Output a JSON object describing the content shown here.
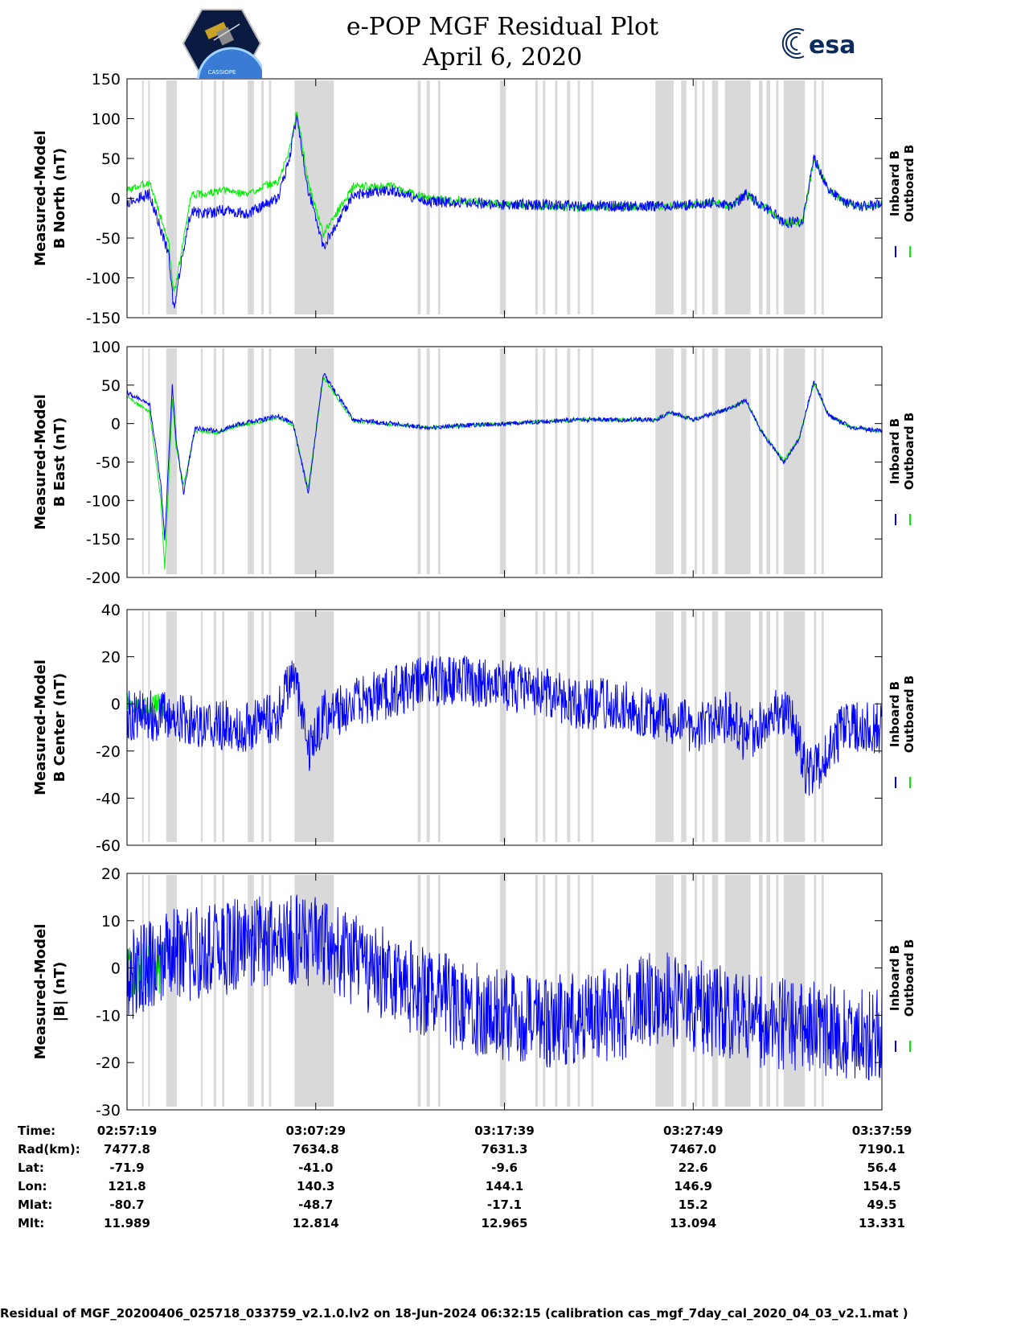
{
  "header": {
    "title_line1": "e-POP MGF Residual Plot",
    "title_line2": "April 6, 2020",
    "left_logo_text": "CASSIOPE",
    "right_logo_text": "esa"
  },
  "colors": {
    "inboard": "#0000ff",
    "outboard": "#00ee00",
    "shading": "#d9d9d9"
  },
  "chart_data": [
    {
      "type": "line",
      "ylabel": [
        "Measured-Model",
        "B North (nT)"
      ],
      "ylim": [
        -150,
        150
      ],
      "yticks": [
        -150,
        -100,
        -50,
        0,
        50,
        100,
        150
      ],
      "legend": [
        "Inboard B",
        "Outboard B"
      ],
      "legend_placement": "right",
      "series": [
        {
          "name": "Inboard B",
          "color": "#0000ff",
          "x": [
            0,
            0.03,
            0.055,
            0.062,
            0.07,
            0.085,
            0.1,
            0.13,
            0.16,
            0.18,
            0.2,
            0.215,
            0.225,
            0.24,
            0.26,
            0.3,
            0.35,
            0.4,
            0.45,
            0.5,
            0.55,
            0.6,
            0.65,
            0.7,
            0.75,
            0.78,
            0.8,
            0.82,
            0.85,
            0.87,
            0.895,
            0.91,
            0.93,
            0.95,
            0.97,
            1.0
          ],
          "y": [
            -5,
            5,
            -70,
            -140,
            -90,
            -15,
            -20,
            -15,
            -20,
            -10,
            0,
            50,
            105,
            10,
            -60,
            5,
            10,
            -5,
            -5,
            -8,
            -8,
            -10,
            -10,
            -10,
            -8,
            -5,
            -10,
            5,
            -15,
            -30,
            -30,
            50,
            10,
            -5,
            -10,
            -8
          ],
          "noise": 14
        },
        {
          "name": "Outboard B",
          "color": "#00ee00",
          "x": [
            0,
            0.03,
            0.055,
            0.062,
            0.07,
            0.085,
            0.1,
            0.13,
            0.16,
            0.18,
            0.2,
            0.215,
            0.225,
            0.24,
            0.26,
            0.3,
            0.35,
            0.4,
            0.45,
            0.5,
            0.55,
            0.6,
            0.65,
            0.7,
            0.75,
            0.78,
            0.8,
            0.82,
            0.85,
            0.87,
            0.895,
            0.91,
            0.93,
            0.95,
            0.97,
            1.0
          ],
          "y": [
            10,
            20,
            -55,
            -120,
            -80,
            5,
            5,
            10,
            5,
            15,
            20,
            60,
            110,
            20,
            -45,
            15,
            15,
            0,
            -3,
            -8,
            -10,
            -12,
            -10,
            -10,
            -8,
            -5,
            -10,
            5,
            -15,
            -30,
            -30,
            50,
            10,
            -5,
            -10,
            -8
          ],
          "noise": 10
        }
      ]
    },
    {
      "type": "line",
      "ylabel": [
        "Measured-Model",
        "B East (nT)"
      ],
      "ylim": [
        -200,
        100
      ],
      "yticks": [
        -200,
        -150,
        -100,
        -50,
        0,
        50,
        100
      ],
      "legend": [
        "Inboard B",
        "Outboard B"
      ],
      "legend_placement": "right",
      "series": [
        {
          "name": "Inboard B",
          "color": "#0000ff",
          "x": [
            0,
            0.03,
            0.045,
            0.05,
            0.06,
            0.065,
            0.075,
            0.09,
            0.12,
            0.15,
            0.18,
            0.2,
            0.22,
            0.24,
            0.26,
            0.3,
            0.4,
            0.5,
            0.6,
            0.7,
            0.72,
            0.75,
            0.8,
            0.82,
            0.84,
            0.87,
            0.89,
            0.91,
            0.93,
            0.96,
            1.0
          ],
          "y": [
            40,
            25,
            -80,
            -150,
            50,
            -20,
            -90,
            -5,
            -10,
            0,
            5,
            10,
            0,
            -90,
            65,
            5,
            -5,
            0,
            5,
            5,
            15,
            5,
            20,
            30,
            -10,
            -50,
            -20,
            55,
            10,
            -5,
            -10
          ],
          "noise": 6
        },
        {
          "name": "Outboard B",
          "color": "#00ee00",
          "x": [
            0,
            0.03,
            0.045,
            0.05,
            0.06,
            0.065,
            0.075,
            0.09,
            0.12,
            0.15,
            0.18,
            0.2,
            0.22,
            0.24,
            0.26,
            0.3,
            0.4,
            0.5,
            0.6,
            0.7,
            0.72,
            0.75,
            0.8,
            0.82,
            0.84,
            0.87,
            0.89,
            0.91,
            0.93,
            0.96,
            1.0
          ],
          "y": [
            35,
            15,
            -100,
            -190,
            30,
            -30,
            -80,
            -10,
            -12,
            -2,
            3,
            8,
            -2,
            -85,
            60,
            3,
            -5,
            0,
            5,
            5,
            15,
            5,
            20,
            30,
            -10,
            -48,
            -20,
            52,
            10,
            -5,
            -10
          ],
          "noise": 4
        }
      ]
    },
    {
      "type": "line",
      "ylabel": [
        "Measured-Model",
        "B Center (nT)"
      ],
      "ylim": [
        -60,
        40
      ],
      "yticks": [
        -60,
        -40,
        -20,
        0,
        20,
        40
      ],
      "legend": [
        "Inboard B",
        "Outboard B"
      ],
      "legend_placement": "right",
      "series": [
        {
          "name": "Inboard B",
          "color": "#0000ff",
          "x": [
            0,
            0.05,
            0.1,
            0.15,
            0.2,
            0.22,
            0.24,
            0.26,
            0.3,
            0.4,
            0.45,
            0.5,
            0.55,
            0.6,
            0.65,
            0.7,
            0.75,
            0.8,
            0.82,
            0.85,
            0.88,
            0.9,
            0.92,
            0.95,
            0.97,
            1.0
          ],
          "y": [
            -5,
            -5,
            -8,
            -10,
            -5,
            15,
            -20,
            -5,
            0,
            10,
            10,
            8,
            5,
            0,
            0,
            -5,
            -10,
            -5,
            -15,
            -5,
            -5,
            -30,
            -25,
            -10,
            -10,
            -10
          ],
          "noise": 22
        },
        {
          "name": "Outboard B",
          "color": "#00ee00",
          "x": [
            0,
            0.02,
            0.04,
            0.05
          ],
          "y": [
            0,
            -3,
            0,
            -2
          ],
          "noise": 10
        }
      ]
    },
    {
      "type": "line",
      "ylabel": [
        "Measured-Model",
        "|B| (nT)"
      ],
      "ylim": [
        -30,
        20
      ],
      "yticks": [
        -30,
        -20,
        -10,
        0,
        10,
        20
      ],
      "legend": [
        "Inboard B",
        "Outboard B"
      ],
      "legend_placement": "right",
      "series": [
        {
          "name": "Inboard B",
          "color": "#0000ff",
          "x": [
            0,
            0.05,
            0.1,
            0.15,
            0.2,
            0.25,
            0.3,
            0.35,
            0.4,
            0.45,
            0.5,
            0.55,
            0.6,
            0.65,
            0.7,
            0.75,
            0.8,
            0.85,
            0.9,
            0.95,
            1.0
          ],
          "y": [
            -2,
            3,
            3,
            5,
            6,
            5,
            2,
            -2,
            -6,
            -8,
            -10,
            -12,
            -10,
            -10,
            -6,
            -8,
            -10,
            -12,
            -12,
            -14,
            -14
          ],
          "noise": 20
        },
        {
          "name": "Outboard B",
          "color": "#00ee00",
          "x": [
            0,
            0.02,
            0.04,
            0.05
          ],
          "y": [
            -2,
            0,
            -1,
            0
          ],
          "noise": 12
        }
      ]
    }
  ],
  "shaded_intervals": [
    [
      0.02,
      0.022
    ],
    [
      0.028,
      0.03
    ],
    [
      0.052,
      0.066
    ],
    [
      0.098,
      0.1
    ],
    [
      0.115,
      0.118
    ],
    [
      0.126,
      0.129
    ],
    [
      0.16,
      0.168
    ],
    [
      0.178,
      0.181
    ],
    [
      0.188,
      0.191
    ],
    [
      0.222,
      0.274
    ],
    [
      0.385,
      0.389
    ],
    [
      0.397,
      0.401
    ],
    [
      0.412,
      0.415
    ],
    [
      0.494,
      0.502
    ],
    [
      0.541,
      0.544
    ],
    [
      0.551,
      0.554
    ],
    [
      0.567,
      0.57
    ],
    [
      0.583,
      0.587
    ],
    [
      0.597,
      0.6
    ],
    [
      0.615,
      0.618
    ],
    [
      0.7,
      0.724
    ],
    [
      0.734,
      0.741
    ],
    [
      0.752,
      0.755
    ],
    [
      0.762,
      0.765
    ],
    [
      0.775,
      0.783
    ],
    [
      0.792,
      0.826
    ],
    [
      0.837,
      0.842
    ],
    [
      0.847,
      0.852
    ],
    [
      0.86,
      0.863
    ],
    [
      0.87,
      0.898
    ],
    [
      0.91,
      0.913
    ],
    [
      0.92,
      0.923
    ]
  ],
  "x_axis": {
    "tick_positions": [
      0,
      0.25,
      0.5,
      0.75,
      1.0
    ],
    "row_labels": [
      "Time:",
      "Rad(km):",
      "Lat:",
      "Lon:",
      "Mlat:",
      "Mlt:"
    ],
    "columns": [
      [
        "02:57:19",
        "7477.8",
        "-71.9",
        "121.8",
        "-80.7",
        "11.989"
      ],
      [
        "03:07:29",
        "7634.8",
        "-41.0",
        "140.3",
        "-48.7",
        "12.814"
      ],
      [
        "03:17:39",
        "7631.3",
        "-9.6",
        "144.1",
        "-17.1",
        "12.965"
      ],
      [
        "03:27:49",
        "7467.0",
        "22.6",
        "146.9",
        "15.2",
        "13.094"
      ],
      [
        "03:37:59",
        "7190.1",
        "56.4",
        "154.5",
        "49.5",
        "13.331"
      ]
    ]
  },
  "footer": {
    "text": "Residual of MGF_20200406_025718_033759_v2.1.0.lv2 on 18-Jun-2024 06:32:15 (calibration cas_mgf_7day_cal_2020_04_03_v2.1.mat )"
  }
}
